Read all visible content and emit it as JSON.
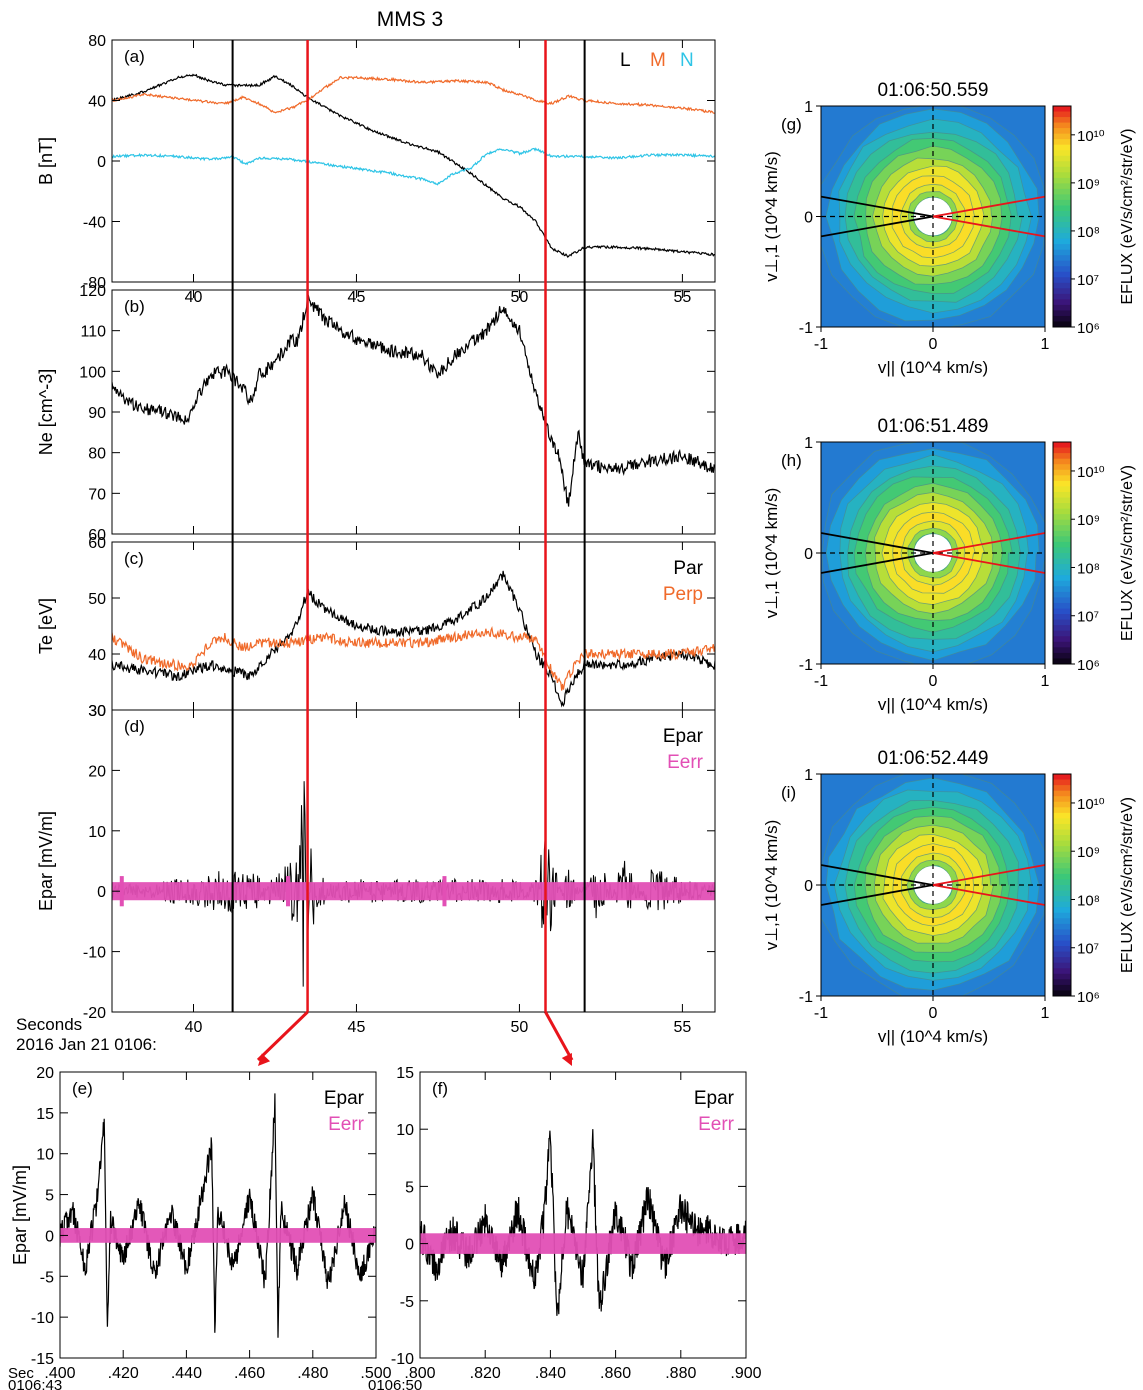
{
  "figure": {
    "title": "MMS 3",
    "time_label_line1": "Seconds",
    "time_label_line2": "2016 Jan 21 0106:",
    "colors": {
      "L": "#000000",
      "M": "#f06a2a",
      "N": "#2ec4e6",
      "Epar": "#000000",
      "Eerr": "#e24fb5",
      "marker_black": "#000000",
      "marker_red": "#e8141b"
    },
    "black_markers_sec": [
      41.2,
      52.0
    ],
    "red_markers_sec": [
      43.5,
      50.8
    ]
  },
  "chart_data": [
    {
      "id": "a",
      "panel_label": "(a)",
      "type": "line",
      "ylabel": "B [nT]",
      "ylim": [
        -80,
        80
      ],
      "yticks": [
        "80",
        "40",
        "0",
        "-40",
        "-80"
      ],
      "ytick_values": [
        80,
        40,
        0,
        -40,
        -80
      ],
      "xlim": [
        37.5,
        56
      ],
      "xticks": [
        "40",
        "45",
        "50",
        "55"
      ],
      "xtick_values": [
        40,
        45,
        50,
        55
      ],
      "legend": [
        "L",
        "M",
        "N"
      ],
      "series": [
        {
          "name": "L",
          "x": [
            37.5,
            38.5,
            39.5,
            40,
            40.5,
            41,
            42,
            42.5,
            43,
            43.5,
            44.5,
            45.5,
            46.5,
            47.5,
            48.5,
            49.5,
            50,
            50.5,
            51,
            51.5,
            52,
            53,
            54,
            55,
            56
          ],
          "y": [
            40,
            46,
            55,
            57,
            53,
            50,
            50,
            56,
            50,
            42,
            30,
            20,
            12,
            6,
            -8,
            -25,
            -30,
            -40,
            -58,
            -63,
            -57,
            -57,
            -58,
            -60,
            -62
          ]
        },
        {
          "name": "M",
          "x": [
            37.5,
            38.5,
            40,
            41,
            41.5,
            42,
            42.5,
            43,
            43.5,
            44,
            44.5,
            45,
            46,
            47,
            48,
            49,
            49.5,
            50,
            50.5,
            51,
            51.5,
            52,
            53,
            54,
            55,
            56
          ],
          "y": [
            40,
            44,
            40,
            38,
            42,
            38,
            32,
            35,
            40,
            48,
            55,
            55,
            54,
            52,
            53,
            52,
            47,
            44,
            40,
            38,
            43,
            40,
            38,
            37,
            35,
            32
          ]
        },
        {
          "name": "N",
          "x": [
            37.5,
            38.5,
            39.5,
            40.5,
            41.2,
            41.6,
            42,
            43,
            44,
            45,
            46,
            47,
            47.5,
            48,
            48.5,
            49,
            49.5,
            50,
            50.5,
            51,
            52,
            53,
            54,
            55,
            56
          ],
          "y": [
            3,
            4,
            3,
            1,
            3,
            -2,
            2,
            1,
            -2,
            -5,
            -8,
            -12,
            -15,
            -8,
            -5,
            5,
            8,
            5,
            8,
            3,
            3,
            2,
            4,
            4,
            3
          ]
        }
      ]
    },
    {
      "id": "b",
      "panel_label": "(b)",
      "type": "line",
      "ylabel": "Ne [cm^-3]",
      "ylim": [
        60,
        120
      ],
      "yticks": [
        "120",
        "110",
        "100",
        "90",
        "80",
        "70",
        "60"
      ],
      "ytick_values": [
        120,
        110,
        100,
        90,
        80,
        70,
        60
      ],
      "xlim": [
        37.5,
        56
      ],
      "series": [
        {
          "name": "Ne",
          "x": [
            37.5,
            38,
            39,
            39.8,
            40,
            40.5,
            41,
            41.5,
            41.8,
            42,
            42.5,
            43,
            43.2,
            43.5,
            44,
            44.5,
            45,
            46,
            47,
            47.5,
            48,
            49,
            49.5,
            50,
            50.5,
            51,
            51.2,
            51.5,
            51.8,
            52,
            53,
            54,
            55,
            56
          ],
          "y": [
            96,
            92,
            90,
            88,
            92,
            99,
            100,
            96,
            92,
            99,
            102,
            108,
            107,
            118,
            113,
            110,
            108,
            105,
            104,
            99,
            104,
            110,
            116,
            110,
            95,
            82,
            80,
            67,
            85,
            77,
            76,
            78,
            79,
            76
          ]
        }
      ]
    },
    {
      "id": "c",
      "panel_label": "(c)",
      "type": "line",
      "ylabel": "Te [eV]",
      "ylim": [
        30,
        60
      ],
      "yticks": [
        "60",
        "50",
        "40",
        "30"
      ],
      "ytick_values": [
        60,
        50,
        40,
        30
      ],
      "xlim": [
        37.5,
        56
      ],
      "legend": [
        "Par",
        "Perp"
      ],
      "series": [
        {
          "name": "Par",
          "x": [
            37.5,
            38.5,
            39.5,
            40,
            40.5,
            41.2,
            41.8,
            42.5,
            43,
            43.5,
            44,
            45,
            46,
            47,
            48,
            49,
            49.5,
            50,
            50.5,
            51,
            51.3,
            51.6,
            52,
            53,
            54,
            55,
            56
          ],
          "y": [
            38,
            37,
            36,
            37,
            38,
            37,
            36,
            41,
            43,
            51,
            48,
            45,
            44,
            44,
            46,
            50,
            54,
            48,
            40,
            36,
            31,
            35,
            38,
            38,
            39,
            40,
            38
          ]
        },
        {
          "name": "Perp",
          "x": [
            37.5,
            38.5,
            39.5,
            40,
            40.5,
            41,
            41.5,
            42,
            43,
            44,
            45,
            46,
            47,
            48,
            49,
            50,
            50.5,
            51,
            51.3,
            51.6,
            52,
            53,
            54,
            55,
            56
          ],
          "y": [
            43,
            39,
            38,
            38,
            42,
            43,
            41,
            42,
            42,
            43,
            42,
            42,
            42,
            43,
            44,
            43,
            43,
            37,
            34,
            37,
            40,
            40,
            40,
            40,
            41
          ]
        }
      ]
    },
    {
      "id": "d",
      "panel_label": "(d)",
      "type": "line",
      "ylabel": "Epar [mV/m]",
      "ylim": [
        -20,
        30
      ],
      "yticks": [
        "30",
        "20",
        "10",
        "0",
        "-10",
        "-20"
      ],
      "ytick_values": [
        30,
        20,
        10,
        0,
        -10,
        -20
      ],
      "xlim": [
        37.5,
        56
      ],
      "legend": [
        "Epar",
        "Eerr"
      ],
      "series": [
        {
          "name": "Epar",
          "x": [
            37.5,
            39.2,
            40.5,
            41.2,
            42.5,
            43.2,
            43.4,
            43.5,
            43.6,
            43.8,
            44.5,
            45.5,
            46.5,
            47.5,
            48.5,
            49.5,
            50.5,
            50.8,
            51.5,
            52.5,
            53.2,
            54,
            55,
            56
          ],
          "y": [
            0,
            2,
            3,
            4,
            2,
            8,
            20,
            -13,
            15,
            -4,
            2,
            2,
            2,
            2,
            2,
            2,
            2,
            10,
            -4,
            6,
            -6,
            4,
            2,
            1
          ]
        },
        {
          "name": "Eerr",
          "x": [
            37.5,
            56
          ],
          "y": [
            0,
            0
          ]
        }
      ]
    },
    {
      "id": "e",
      "panel_label": "(e)",
      "type": "line",
      "ylabel": "Epar [mV/m]",
      "ylim": [
        -15,
        20
      ],
      "yticks": [
        "20",
        "15",
        "10",
        "5",
        "0",
        "-5",
        "-10",
        "-15"
      ],
      "ytick_values": [
        20,
        15,
        10,
        5,
        0,
        -5,
        -10,
        -15
      ],
      "xlim": [
        0.4,
        0.5
      ],
      "xticks": [
        ".400",
        ".420",
        ".440",
        ".460",
        ".480",
        ".500"
      ],
      "xtick_values": [
        0.4,
        0.42,
        0.44,
        0.46,
        0.48,
        0.5
      ],
      "xlabel_line1": "Sec",
      "xlabel_line2": "0106:43",
      "legend": [
        "Epar",
        "Eerr"
      ],
      "series": [
        {
          "name": "Epar",
          "x": [
            0.4,
            0.404,
            0.408,
            0.412,
            0.414,
            0.415,
            0.416,
            0.42,
            0.425,
            0.43,
            0.435,
            0.44,
            0.445,
            0.448,
            0.449,
            0.45,
            0.455,
            0.46,
            0.465,
            0.468,
            0.469,
            0.47,
            0.475,
            0.48,
            0.485,
            0.49,
            0.495,
            0.5
          ],
          "y": [
            0,
            3,
            -4,
            5,
            14,
            -11,
            2,
            -3,
            4,
            -5,
            3,
            -4,
            5,
            11,
            -11,
            3,
            -4,
            5,
            -6,
            16,
            -12,
            3,
            -4,
            5,
            -6,
            4,
            -5,
            1
          ]
        },
        {
          "name": "Eerr",
          "x": [
            0.4,
            0.5
          ],
          "y": [
            0,
            0
          ]
        }
      ]
    },
    {
      "id": "f",
      "panel_label": "(f)",
      "type": "line",
      "ylim": [
        -10,
        15
      ],
      "yticks": [
        "15",
        "10",
        "5",
        "0",
        "-5",
        "-10"
      ],
      "ytick_values": [
        15,
        10,
        5,
        0,
        -5,
        -10
      ],
      "xlim": [
        0.8,
        0.9
      ],
      "xticks": [
        ".800",
        ".820",
        ".840",
        ".860",
        ".880",
        ".900"
      ],
      "xtick_values": [
        0.8,
        0.82,
        0.84,
        0.86,
        0.88,
        0.9
      ],
      "xlabel_line2": "0106:50",
      "legend": [
        "Epar",
        "Eerr"
      ],
      "series": [
        {
          "name": "Epar",
          "x": [
            0.8,
            0.805,
            0.81,
            0.815,
            0.82,
            0.825,
            0.83,
            0.835,
            0.838,
            0.84,
            0.842,
            0.845,
            0.85,
            0.853,
            0.855,
            0.86,
            0.865,
            0.87,
            0.875,
            0.88,
            0.885,
            0.89,
            0.895,
            0.9
          ],
          "y": [
            1,
            -2,
            1,
            -1,
            2,
            -2,
            3,
            -3,
            2,
            10,
            -7,
            3,
            -3,
            9,
            -6,
            3,
            -2,
            4,
            -2,
            3,
            1,
            1,
            0,
            1
          ]
        },
        {
          "name": "Eerr",
          "x": [
            0.8,
            0.9
          ],
          "y": [
            0,
            0
          ]
        }
      ]
    },
    {
      "id": "g",
      "panel_label": "(g)",
      "type": "heatmap",
      "title": "01:06:50.559",
      "xlabel": "v|| (10^4 km/s)",
      "ylabel": "v⊥,1 (10^4 km/s)",
      "xlim": [
        -1,
        1
      ],
      "ylim": [
        -1,
        1
      ],
      "xticks": [
        "-1",
        "0",
        "1"
      ],
      "yticks": [
        "1",
        "0",
        "-1"
      ],
      "colorbar": {
        "label": "EFLUX (eV/s/cm²/str/eV)",
        "ticks": [
          "10¹⁰",
          "10⁹",
          "10⁸",
          "10⁷",
          "10⁶"
        ],
        "log_range": [
          6,
          10.6
        ]
      }
    },
    {
      "id": "h",
      "panel_label": "(h)",
      "type": "heatmap",
      "title": "01:06:51.489",
      "xlabel": "v|| (10^4 km/s)",
      "ylabel": "v⊥,1 (10^4 km/s)",
      "xlim": [
        -1,
        1
      ],
      "ylim": [
        -1,
        1
      ],
      "xticks": [
        "-1",
        "0",
        "1"
      ],
      "yticks": [
        "1",
        "0",
        "-1"
      ],
      "colorbar": {
        "label": "EFLUX (eV/s/cm²/str/eV)",
        "ticks": [
          "10¹⁰",
          "10⁹",
          "10⁸",
          "10⁷",
          "10⁶"
        ],
        "log_range": [
          6,
          10.6
        ]
      }
    },
    {
      "id": "i",
      "panel_label": "(i)",
      "type": "heatmap",
      "title": "01:06:52.449",
      "xlabel": "v|| (10^4 km/s)",
      "ylabel": "v⊥,1 (10^4 km/s)",
      "xlim": [
        -1,
        1
      ],
      "ylim": [
        -1,
        1
      ],
      "xticks": [
        "-1",
        "0",
        "1"
      ],
      "yticks": [
        "1",
        "0",
        "-1"
      ],
      "colorbar": {
        "label": "EFLUX (eV/s/cm²/str/eV)",
        "ticks": [
          "10¹⁰",
          "10⁹",
          "10⁸",
          "10⁷",
          "10⁶"
        ],
        "log_range": [
          6,
          10.6
        ]
      }
    }
  ]
}
